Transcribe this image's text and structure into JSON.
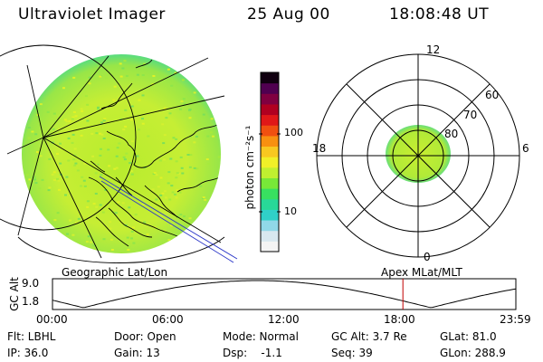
{
  "header": {
    "instrument": "Ultraviolet Imager",
    "date": "25 Aug 00",
    "time": "18:08:48 UT"
  },
  "colorbar": {
    "unit_label": "photon cm⁻²s⁻¹",
    "ticks": [
      "100",
      "10"
    ],
    "colors": [
      "#f4f4f4",
      "#d8e8f0",
      "#90d8e8",
      "#30d0c8",
      "#28d898",
      "#38e060",
      "#78e838",
      "#c0f030",
      "#f0f028",
      "#f8c820",
      "#f89010",
      "#f05010",
      "#e01818",
      "#b00020",
      "#800040",
      "#500050",
      "#100010"
    ]
  },
  "geo_panel": {
    "label": "Geographic Lat/Lon"
  },
  "polar_panel": {
    "label": "Apex MLat/MLT",
    "mlt_labels": {
      "top": "12",
      "left": "18",
      "right": "6",
      "bottom": "0"
    },
    "lat_labels": [
      "60",
      "70",
      "80"
    ]
  },
  "gc_plot": {
    "axis_title": "GC Alt",
    "y_ticks": [
      "9.0",
      "1.8"
    ],
    "x_ticks": [
      "00:00",
      "06:00",
      "12:00",
      "18:00",
      "23:59"
    ],
    "marker_time_hours": 18.15,
    "marker_color": "#c00000"
  },
  "info": {
    "row1": {
      "filter": "Flt: LBHL",
      "door": "Door: Open",
      "mode": "Mode: Normal",
      "gc_alt": "GC Alt: 3.7 Re",
      "glat": "GLat: 81.0"
    },
    "row2": {
      "ip": "IP: 36.0",
      "gain": "Gain: 13",
      "dsp": "Dsp:    -1.1",
      "seq": "Seq: 39",
      "glon": "GLon: 288.9"
    }
  }
}
